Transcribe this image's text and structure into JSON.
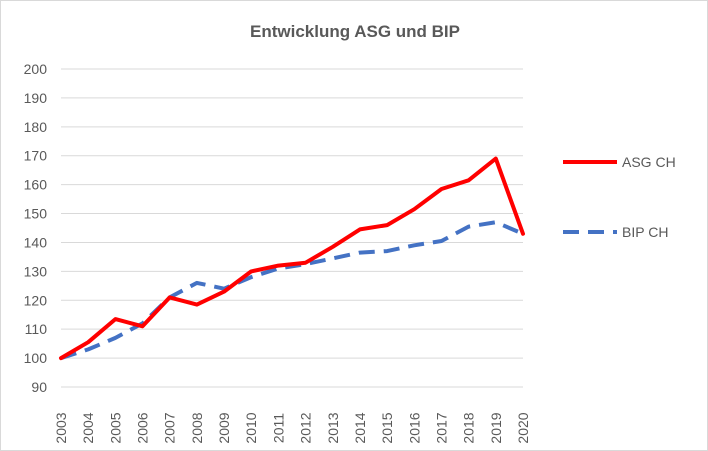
{
  "chart_data": {
    "type": "line",
    "title": "Entwicklung ASG und BIP",
    "xlabel": "",
    "ylabel": "",
    "ylim": [
      90,
      200
    ],
    "yticks": [
      90,
      100,
      110,
      120,
      130,
      140,
      150,
      160,
      170,
      180,
      190,
      200
    ],
    "grid": true,
    "legend_position": "right",
    "x": [
      "2003",
      "2004",
      "2005",
      "2006",
      "2007",
      "2008",
      "2009",
      "2010",
      "2011",
      "2012",
      "2013",
      "2014",
      "2015",
      "2016",
      "2017",
      "2018",
      "2019",
      "2020"
    ],
    "series": [
      {
        "name": "ASG CH",
        "color": "#ff0000",
        "style": "solid",
        "values": [
          100,
          105.5,
          113.5,
          111,
          121,
          118.5,
          123,
          130,
          132,
          133,
          138.5,
          144.5,
          146,
          151.5,
          158.5,
          161.5,
          169,
          143
        ]
      },
      {
        "name": "BIP CH",
        "color": "#4472c4",
        "style": "dashed",
        "values": [
          100,
          103,
          107,
          112,
          121,
          126,
          124,
          128,
          131,
          132.5,
          134.5,
          136.5,
          137,
          139,
          140.5,
          145.5,
          147,
          143
        ]
      }
    ]
  }
}
